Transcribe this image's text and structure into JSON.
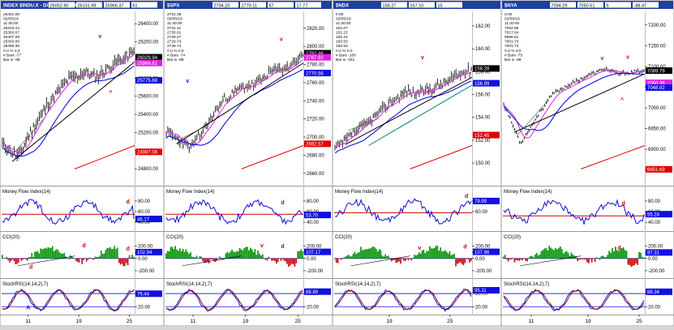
{
  "colors": {
    "bg": "#ffffff",
    "frame": "#9a9a9a",
    "titlebar": "#1f3fa0",
    "price": "#000000",
    "ma_fast": "#e020e0",
    "ma_slow": "#1010e0",
    "ma_long": "#e00000",
    "ma_mid": "#008080",
    "trend": "#000000",
    "mfi": "#1010d0",
    "mfi_ref": "#d00000",
    "cci_pos": "#009000",
    "cci_neg": "#d00000",
    "stoch_k": "#1010d0",
    "stoch_d": "#8b0000",
    "annot": "#d00000",
    "annot_blue": "#1010e0"
  },
  "chart_data": [
    {
      "type": "line",
      "titlebar": {
        "symbol": "INDEX $INDU.X - DOW JONES INDUS",
        "fields": [
          "26052.90",
          "26131.99",
          "25966.37",
          "61"
        ]
      },
      "info": [
        "26421.06",
        "02/05/19",
        "11:30:00",
        "26210.44",
        "25363.07",
        "25407.25",
        "25343.00",
        "25366.36",
        "Cci % 3.4",
        "# Bars -77",
        "Bar ix -88"
      ],
      "price_ticks": [
        "26400.00",
        "26200.00",
        "26000.00",
        "25800.00",
        "25600.00",
        "25400.00",
        "25200.00",
        "25000.00",
        "24800.00"
      ],
      "price_range": [
        24650,
        26500
      ],
      "price_start": 25070,
      "price_end": 26080,
      "path": [
        [
          0,
          0
        ],
        [
          0.12,
          -0.14
        ],
        [
          0.2,
          0.1
        ],
        [
          0.35,
          0.45
        ],
        [
          0.5,
          0.7
        ],
        [
          0.62,
          0.78
        ],
        [
          0.72,
          0.74
        ],
        [
          0.85,
          0.88
        ],
        [
          1,
          1
        ]
      ],
      "tags": [
        {
          "text": "26029.94",
          "value": 26029.94,
          "color": "#ffffff",
          "fill": "#000000"
        },
        {
          "text": "25966.81",
          "value": 25966.81,
          "color": "#ffffff",
          "fill": "#e020e0"
        },
        {
          "text": "25775.68",
          "value": 25775.68,
          "color": "#ffffff",
          "fill": "#1010e0"
        },
        {
          "text": "24987.06",
          "value": 24987.06,
          "color": "#ffffff",
          "fill": "#e00000"
        }
      ],
      "mfi_ticks": [
        "80.00",
        "60.00",
        "40.00"
      ],
      "mfi_tag": "46.17",
      "mfi_ref": 55,
      "mfi_last": 46.17,
      "cci_ticks": [
        "200.00",
        "100.00",
        "0.00",
        "-200.00"
      ],
      "cci_tag": "102.94",
      "stoch_ticks": [
        "80.00",
        "20.00"
      ],
      "stoch_tag": "79.44",
      "x_ticks": [
        {
          "label": "11",
          "t": 0.2
        },
        {
          "label": "19",
          "t": 0.58
        },
        {
          "label": "25",
          "t": 0.96
        }
      ],
      "markers": {
        "price": [
          {
            "text": "v",
            "t": 0.74,
            "v": 26240,
            "c": "annot"
          },
          {
            "text": "^",
            "t": 0.82,
            "v": 25620,
            "c": "annot"
          }
        ],
        "mfi": [
          {
            "text": "d",
            "t": 0.95,
            "v": 75,
            "c": "annot"
          }
        ],
        "cci": [
          {
            "text": "d",
            "t": 0.62,
            "v": 180,
            "c": "annot"
          },
          {
            "text": "d",
            "t": 0.95,
            "v": 130,
            "c": "annot"
          },
          {
            "text": "d",
            "t": 0.22,
            "v": -170,
            "c": "annot"
          }
        ],
        "stoch": [
          {
            "text": "A",
            "t": 0.2,
            "v": 8,
            "c": "annot_blue"
          }
        ]
      },
      "seed": 11
    },
    {
      "type": "line",
      "titlebar": {
        "symbol": "$SPX",
        "fields": [
          "2794.20",
          "2779.11",
          "67",
          "17.77"
        ]
      },
      "info": [
        "2731.38",
        "02/05/19",
        "11:30:00",
        "2731.11",
        "2735.61",
        "2728.27",
        "2729.74",
        "2729.74",
        "Cci % 0.0",
        "# Bars -74",
        "Bar ix -88"
      ],
      "price_ticks": [
        "2820.00",
        "2800.00",
        "2780.00",
        "2760.00",
        "2740.00",
        "2720.00",
        "2700.00",
        "2680.00",
        "2660.00"
      ],
      "price_range": [
        2650,
        2835
      ],
      "price_start": 2706,
      "price_end": 2790,
      "path": [
        [
          0,
          0
        ],
        [
          0.18,
          -0.22
        ],
        [
          0.3,
          0.1
        ],
        [
          0.42,
          0.42
        ],
        [
          0.55,
          0.58
        ],
        [
          0.65,
          0.62
        ],
        [
          0.78,
          0.8
        ],
        [
          0.88,
          0.83
        ],
        [
          1,
          1
        ]
      ],
      "tags": [
        {
          "text": "2792.46",
          "value": 2792.46,
          "color": "#ffffff",
          "fill": "#000000"
        },
        {
          "text": "2787.92",
          "value": 2787.92,
          "color": "#ffffff",
          "fill": "#e020e0"
        },
        {
          "text": "2770.56",
          "value": 2770.56,
          "color": "#ffffff",
          "fill": "#1010e0"
        },
        {
          "text": "2692.57",
          "value": 2692.57,
          "color": "#ffffff",
          "fill": "#e00000"
        }
      ],
      "mfi_ticks": [
        "80.00",
        "60.00",
        "40.00"
      ],
      "mfi_tag": "53.70",
      "mfi_ref": 55,
      "mfi_last": 53.7,
      "cci_ticks": [
        "200.00",
        "100.00",
        "0.00",
        "-200.00"
      ],
      "cci_tag": "107.17",
      "stoch_ticks": [
        "80.00",
        "20.00"
      ],
      "stoch_tag": "88.89",
      "x_ticks": [
        {
          "label": "11",
          "t": 0.2
        },
        {
          "label": "19",
          "t": 0.58
        },
        {
          "label": "25",
          "t": 0.96
        }
      ],
      "markers": {
        "price": [
          {
            "text": "v",
            "t": 0.16,
            "v": 2760,
            "c": "annot_blue"
          },
          {
            "text": "v",
            "t": 0.84,
            "v": 2806,
            "c": "annot"
          },
          {
            "text": "^",
            "t": 0.88,
            "v": 2770,
            "c": "annot"
          }
        ],
        "mfi": [
          {
            "text": "d",
            "t": 0.85,
            "v": 74,
            "c": "annot"
          }
        ],
        "cci": [
          {
            "text": "v",
            "t": 0.7,
            "v": 180,
            "c": "annot"
          },
          {
            "text": "d",
            "t": 0.85,
            "v": 170,
            "c": "annot"
          }
        ],
        "stoch": []
      },
      "seed": 23
    },
    {
      "type": "line",
      "titlebar": {
        "symbol": "$NDX",
        "fields": [
          "158.27",
          "157.10",
          "15"
        ]
      },
      "info": [
        "0.00",
        "02/05/19",
        "11:30:00",
        "151.07",
        "151.23",
        "150.24",
        "150.53",
        "150.53",
        "Cci % 0.0",
        "# Bars -100",
        "Bar ix -151"
      ],
      "price_ticks": [
        "162.00",
        "160.00",
        "158.00",
        "156.00",
        "154.00",
        "152.00",
        "150.00"
      ],
      "price_range": [
        148.3,
        163
      ],
      "price_start": 151.2,
      "price_end": 158.2,
      "path": [
        [
          0,
          0
        ],
        [
          0.12,
          0.18
        ],
        [
          0.25,
          0.35
        ],
        [
          0.4,
          0.58
        ],
        [
          0.52,
          0.72
        ],
        [
          0.6,
          0.7
        ],
        [
          0.72,
          0.76
        ],
        [
          0.85,
          0.88
        ],
        [
          1,
          1
        ]
      ],
      "tags": [
        {
          "text": "158.28",
          "value": 158.28,
          "color": "#ffffff",
          "fill": "#000000"
        },
        {
          "text": "156.99",
          "value": 156.99,
          "color": "#ffffff",
          "fill": "#1010e0"
        },
        {
          "text": "152.45",
          "value": 152.45,
          "color": "#ffffff",
          "fill": "#e00000"
        }
      ],
      "mfi_ticks": [
        "80.00",
        "60.00"
      ],
      "mfi_tag": "79.99",
      "mfi_ref": 58,
      "mfi_last": 79.99,
      "cci_ticks": [
        "200.00",
        "100.00",
        "0.00",
        "-200.00"
      ],
      "cci_tag": "107.96",
      "stoch_ticks": [
        "80.00",
        "20.00"
      ],
      "stoch_tag": "95.11",
      "x_ticks": [
        {
          "label": "19",
          "t": 0.4
        },
        {
          "label": "25",
          "t": 0.84
        }
      ],
      "markers": {
        "price": [
          {
            "text": "v",
            "t": 0.64,
            "v": 159.1,
            "c": "annot"
          },
          {
            "text": "^",
            "t": 0.68,
            "v": 155.9,
            "c": "annot"
          }
        ],
        "mfi": [
          {
            "text": "d",
            "t": 0.96,
            "v": 86,
            "c": "annot"
          }
        ],
        "cci": [
          {
            "text": "v",
            "t": 0.62,
            "v": 140,
            "c": "annot"
          },
          {
            "text": "d",
            "t": 0.95,
            "v": 160,
            "c": "annot"
          }
        ],
        "stoch": []
      },
      "seed": 37
    },
    {
      "type": "line",
      "titlebar": {
        "symbol": "$NYA",
        "fields": [
          "7094.29",
          "7050.61",
          "6",
          "-88.47"
        ]
      },
      "info": [
        "0.00",
        "02/05/19",
        "11:30:00",
        "7002.96",
        "7017.64",
        "6986.61",
        "7001.73",
        "7001.73",
        "Cci % 0.0",
        "# Bars -75",
        "Bar ix -88"
      ],
      "price_ticks": [
        "7200.00",
        "7150.00",
        "7100.00",
        "7050.00",
        "7000.00",
        "6950.00",
        "6900.00",
        "6850.00"
      ],
      "price_range": [
        6820,
        7225
      ],
      "price_start": 7010,
      "price_end": 7090,
      "path": [
        [
          0,
          0
        ],
        [
          0.12,
          -1.2
        ],
        [
          0.25,
          -0.3
        ],
        [
          0.35,
          0.3
        ],
        [
          0.48,
          0.6
        ],
        [
          0.6,
          0.85
        ],
        [
          0.72,
          1.05
        ],
        [
          0.82,
          0.9
        ],
        [
          1,
          1
        ]
      ],
      "tags": [
        {
          "text": "7089.79",
          "value": 7089.79,
          "color": "#ffffff",
          "fill": "#000000"
        },
        {
          "text": "7060.36",
          "value": 7060.36,
          "color": "#ffffff",
          "fill": "#e020e0"
        },
        {
          "text": "7048.92",
          "value": 7048.92,
          "color": "#ffffff",
          "fill": "#1010e0"
        },
        {
          "text": "6851.69",
          "value": 6851.69,
          "color": "#ffffff",
          "fill": "#e00000"
        }
      ],
      "mfi_ticks": [
        "80.00",
        "60.00",
        "40.00"
      ],
      "mfi_tag": "55.24",
      "mfi_ref": 52,
      "mfi_last": 55.24,
      "cci_ticks": [
        "200.00",
        "100.00",
        "0.00",
        "-200.00"
      ],
      "cci_tag": "97.31",
      "stoch_ticks": [
        "80.00",
        "20.00"
      ],
      "stoch_tag": "88.34",
      "x_ticks": [
        {
          "label": "11",
          "t": 0.2
        },
        {
          "label": "19",
          "t": 0.6
        },
        {
          "label": "25",
          "t": 0.96
        }
      ],
      "markers": {
        "price": [
          {
            "text": "v",
            "t": 0.7,
            "v": 7115,
            "c": "annot"
          },
          {
            "text": "v",
            "t": 0.88,
            "v": 7118,
            "c": "annot"
          },
          {
            "text": "^",
            "t": 0.84,
            "v": 7015,
            "c": "annot"
          }
        ],
        "mfi": [
          {
            "text": "d",
            "t": 0.85,
            "v": 72,
            "c": "annot"
          }
        ],
        "cci": [
          {
            "text": "d",
            "t": 0.82,
            "v": 140,
            "c": "annot"
          }
        ],
        "stoch": []
      },
      "seed": 53
    }
  ]
}
